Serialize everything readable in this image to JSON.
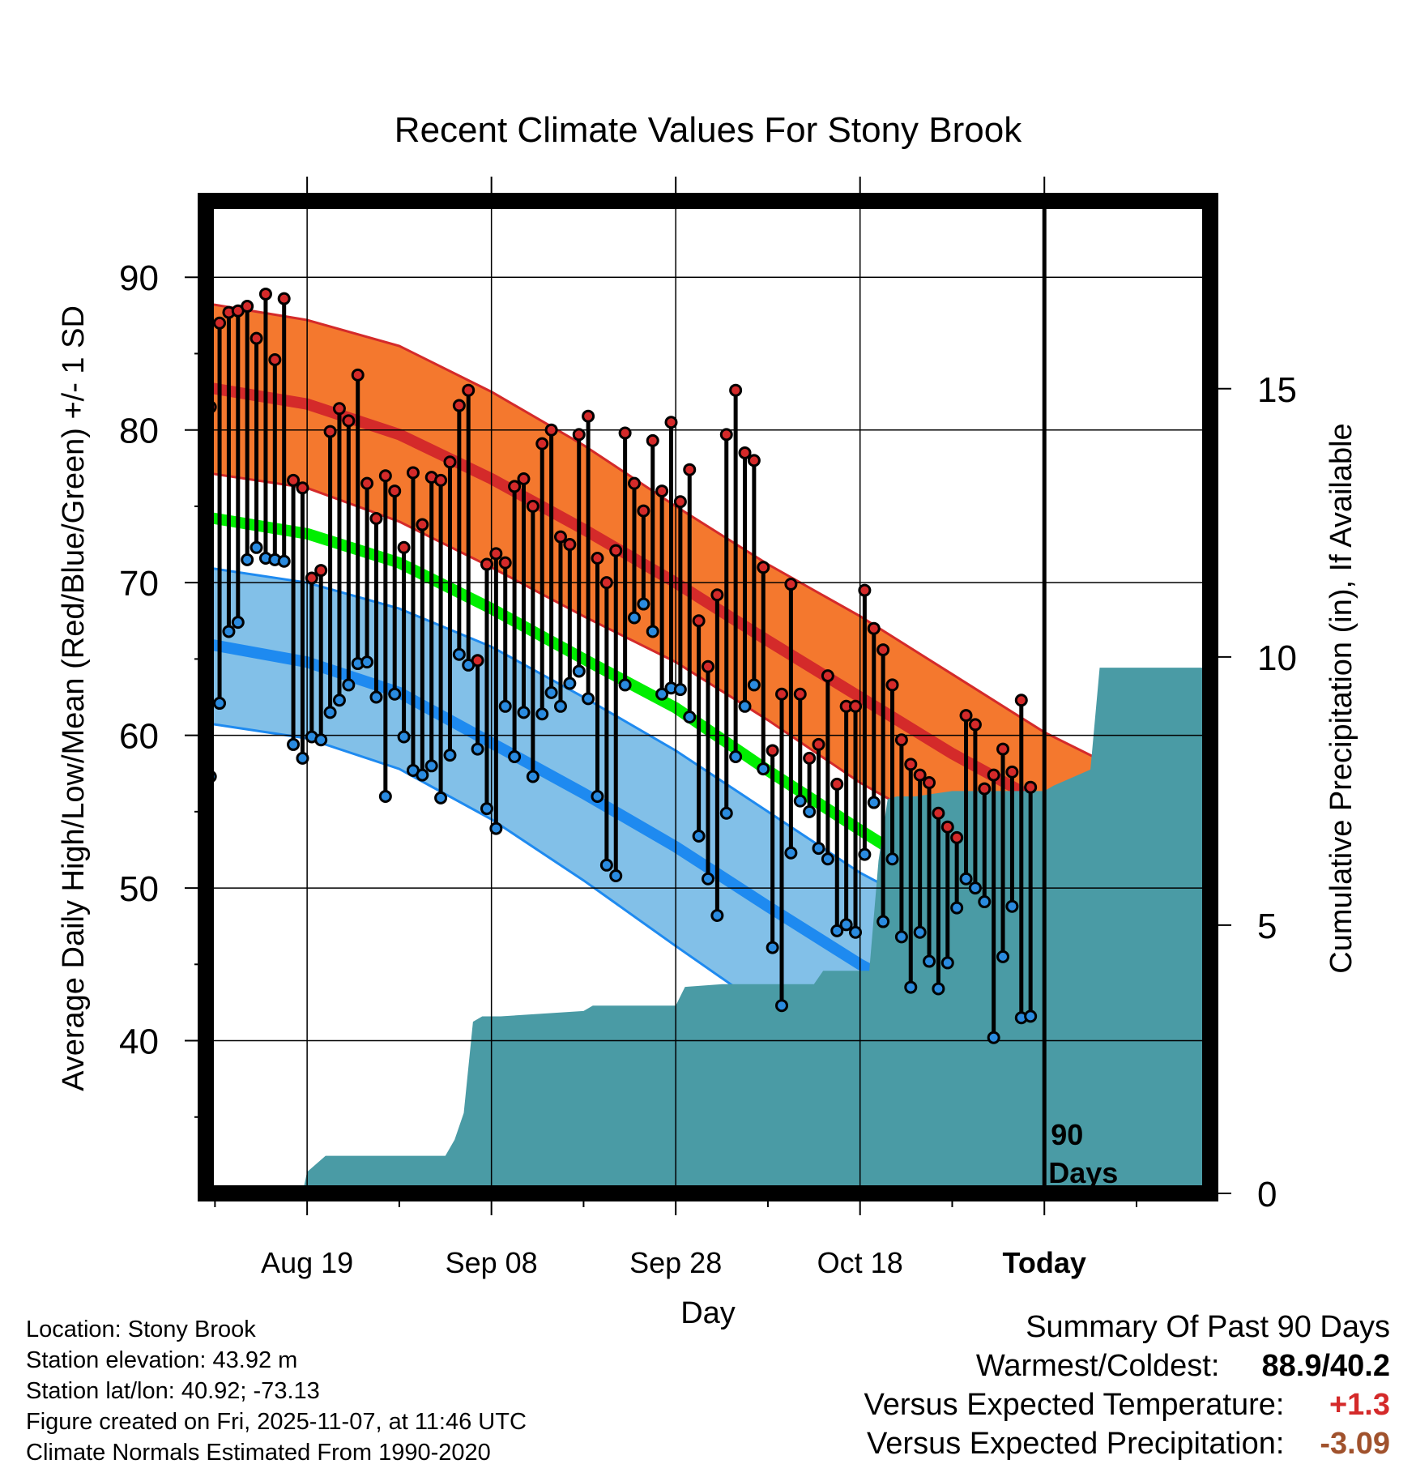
{
  "chart_data": {
    "type": "line",
    "title": "Recent Climate Values For Stony Brook",
    "xlabel": "Day",
    "ylabel": "Average Daily High/Low/Mean (Red/Blue/Green) +/- 1 SD",
    "y2label": "Cumulative Precipitation (in), If Available",
    "xlim": [
      -11,
      98
    ],
    "ylim": [
      30,
      95
    ],
    "y2lim": [
      0,
      18.5
    ],
    "yticks": [
      40,
      50,
      60,
      70,
      80,
      90
    ],
    "yticklabels": [
      "40",
      "50",
      "60",
      "70",
      "80",
      "90"
    ],
    "y2ticks": [
      0,
      5,
      10,
      15
    ],
    "y2ticklabels": [
      "0",
      "5",
      "10",
      "15"
    ],
    "xticks": [
      0,
      20,
      40,
      60,
      80
    ],
    "xticklabels": [
      "Aug 19",
      "Sep 08",
      "Sep 28",
      "Oct 18",
      "Today"
    ],
    "today_marker_label_1": "90",
    "today_marker_label_2": "Days",
    "normals_x": [
      -11,
      0,
      10,
      20,
      30,
      40,
      50,
      60,
      70,
      80,
      90,
      98
    ],
    "normal_high": [
      82.8,
      81.7,
      79.7,
      76.8,
      73.5,
      70.0,
      66.2,
      62.5,
      58.8,
      55.5,
      52.5,
      50.0
    ],
    "normal_high_upper": [
      88.3,
      87.2,
      85.5,
      82.5,
      79.0,
      75.0,
      71.2,
      67.8,
      64.0,
      60.2,
      57.2,
      55.0
    ],
    "normal_high_lower": [
      77.2,
      76.2,
      74.0,
      71.0,
      67.8,
      64.8,
      61.0,
      56.9,
      53.5,
      50.5,
      47.6,
      45.5
    ],
    "normal_mean": [
      74.3,
      73.2,
      71.3,
      68.3,
      65.0,
      61.8,
      57.7,
      53.8,
      50.0,
      46.9,
      44.3,
      42.0
    ],
    "normal_low": [
      66.0,
      64.8,
      62.8,
      59.5,
      56.2,
      52.7,
      48.8,
      45.0,
      41.8,
      39.0,
      36.5,
      34.5
    ],
    "normal_low_upper": [
      71.0,
      70.0,
      68.3,
      65.8,
      62.5,
      59.0,
      55.0,
      51.0,
      47.8,
      45.0,
      42.6,
      40.5
    ],
    "normal_low_lower": [
      60.8,
      59.8,
      57.8,
      54.5,
      50.5,
      46.2,
      42.0,
      38.0,
      34.7,
      32.2,
      30.2,
      28.5
    ],
    "daily_highs": [
      81.5,
      87.0,
      87.7,
      87.8,
      88.1,
      86.0,
      88.9,
      84.6,
      88.6,
      76.7,
      76.2,
      70.3,
      70.8,
      79.9,
      81.4,
      80.6,
      83.6,
      76.5,
      74.2,
      77.0,
      76.0,
      72.3,
      77.2,
      73.8,
      76.9,
      76.7,
      77.9,
      81.6,
      82.6,
      64.9,
      71.2,
      71.9,
      71.3,
      76.3,
      76.8,
      75.0,
      79.1,
      80.0,
      73.0,
      72.5,
      79.7,
      80.9,
      71.6,
      70.0,
      72.1,
      79.8,
      76.5,
      74.7,
      79.3,
      76.0,
      80.5,
      75.3,
      77.4,
      67.5,
      64.5,
      69.2,
      79.7,
      82.6,
      78.5,
      78.0,
      71.0,
      59.0,
      62.7,
      69.9,
      62.7,
      58.5,
      59.4,
      63.9,
      56.8,
      61.9,
      61.9,
      69.5,
      67.0,
      65.6,
      63.3,
      59.7,
      58.1,
      57.4,
      56.9,
      54.9,
      54.0,
      53.3,
      61.3,
      60.7,
      56.5,
      57.4,
      59.1,
      57.6,
      62.3,
      56.6
    ],
    "daily_lows": [
      57.3,
      62.1,
      66.8,
      67.4,
      71.5,
      72.3,
      71.6,
      71.5,
      71.4,
      59.4,
      58.5,
      59.9,
      59.7,
      61.5,
      62.3,
      63.3,
      64.7,
      64.8,
      62.5,
      56.0,
      62.7,
      59.9,
      57.7,
      57.4,
      58.0,
      55.9,
      58.7,
      65.3,
      64.6,
      59.1,
      55.2,
      53.9,
      61.9,
      58.6,
      61.5,
      57.3,
      61.4,
      62.8,
      61.9,
      63.4,
      64.2,
      62.4,
      56.0,
      51.5,
      50.8,
      63.3,
      67.7,
      68.6,
      66.8,
      62.7,
      63.1,
      63.0,
      61.2,
      53.4,
      50.6,
      48.2,
      54.9,
      58.6,
      61.9,
      63.3,
      57.8,
      46.1,
      42.3,
      52.3,
      55.7,
      55.0,
      52.6,
      51.9,
      47.2,
      47.6,
      47.1,
      52.2,
      55.6,
      47.8,
      51.9,
      46.8,
      43.5,
      47.1,
      45.2,
      43.4,
      45.1,
      48.7,
      50.6,
      50.0,
      49.1,
      40.2,
      45.5,
      48.8,
      41.5,
      41.6
    ],
    "precip_x": [
      -11,
      -0.5,
      0,
      2,
      15,
      16,
      17,
      18,
      19,
      20,
      21,
      30,
      31,
      40,
      41,
      45,
      46,
      47,
      48,
      55,
      56,
      60,
      61,
      62,
      63,
      64,
      65,
      66,
      70,
      80,
      81,
      85,
      86,
      98
    ],
    "precip_cumulative": [
      0,
      0,
      0.4,
      0.7,
      0.7,
      1.0,
      1.5,
      3.2,
      3.3,
      3.3,
      3.3,
      3.4,
      3.5,
      3.5,
      3.85,
      3.9,
      3.9,
      3.9,
      3.9,
      3.9,
      4.15,
      4.15,
      4.15,
      6.2,
      7.35,
      7.4,
      7.4,
      7.4,
      7.5,
      7.5,
      7.6,
      7.9,
      9.8,
      9.8
    ],
    "colors": {
      "high_band": "#f4782e",
      "high_line": "#d42a2a",
      "low_band": "#82c0e8",
      "low_line": "#1e8af0",
      "mean_line": "#00ee00",
      "precip": "#4a9ba5",
      "high_dot": "#d42a2a",
      "low_dot": "#2a8be0"
    }
  },
  "info": {
    "location": "Location: Stony Brook",
    "elevation": "Station elevation: 43.92 m",
    "latlon": "Station lat/lon: 40.92; -73.13",
    "created": "Figure created on Fri, 2025-11-07, at 11:46 UTC",
    "normals": "Climate Normals Estimated From 1990-2020"
  },
  "summary": {
    "title": "Summary Of Past 90 Days",
    "warmest_label": "Warmest/Coldest:",
    "warmest_value": "88.9/40.2",
    "temp_label": "Versus Expected Temperature:",
    "temp_value": "+1.3",
    "temp_color": "#d42a2a",
    "precip_label": "Versus Expected Precipitation:",
    "precip_value": "-3.09",
    "precip_color": "#a0522d"
  }
}
